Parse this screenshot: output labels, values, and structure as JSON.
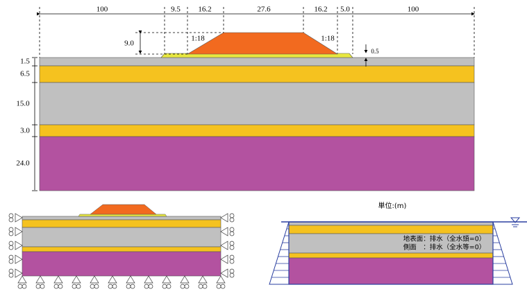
{
  "dimensions": [
    "100",
    "9.5",
    "16.2",
    "27.6",
    "16.2",
    "5.0",
    "100"
  ],
  "embankment": {
    "height": "9.0",
    "slope_left": "1:18",
    "slope_right": "1:18",
    "base_layer": "0.5"
  },
  "layers": [
    "1.5",
    "6.5",
    "15.0",
    "3.0",
    "24.0"
  ],
  "unit": "単位:(m)",
  "boundary_conditions": [
    "地表面：排水（全水頭=0）",
    "側面　：排水（全水等=0）"
  ]
}
